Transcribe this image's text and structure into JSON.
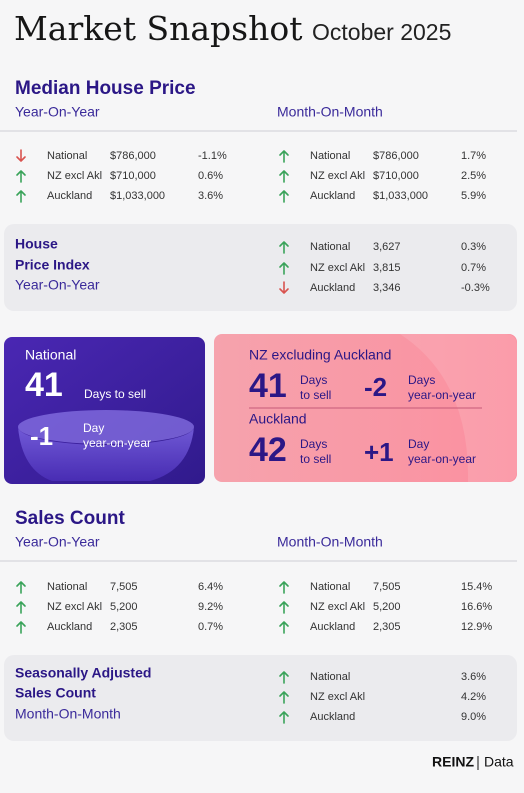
{
  "header": {
    "title": "Market Snapshot",
    "subtitle": "October 2025"
  },
  "median_price": {
    "title": "Median House Price",
    "yoy_label": "Year-On-Year",
    "mom_label": "Month-On-Month",
    "yoy": [
      {
        "dir": "down",
        "region": "National",
        "value": "$786,000",
        "change": "-1.1%"
      },
      {
        "dir": "up",
        "region": "NZ excl Akl",
        "value": "$710,000",
        "change": "0.6%"
      },
      {
        "dir": "up",
        "region": "Auckland",
        "value": "$1,033,000",
        "change": "3.6%"
      }
    ],
    "mom": [
      {
        "dir": "up",
        "region": "National",
        "value": "$786,000",
        "change": "1.7%"
      },
      {
        "dir": "up",
        "region": "NZ excl Akl",
        "value": "$710,000",
        "change": "2.5%"
      },
      {
        "dir": "up",
        "region": "Auckland",
        "value": "$1,033,000",
        "change": "5.9%"
      }
    ]
  },
  "hpi": {
    "title_lines": [
      "House",
      "Price Index"
    ],
    "period": "Year-On-Year",
    "rows": [
      {
        "dir": "up",
        "region": "National",
        "value": "3,627",
        "change": "0.3%"
      },
      {
        "dir": "up",
        "region": "NZ excl Akl",
        "value": "3,815",
        "change": "0.7%"
      },
      {
        "dir": "down",
        "region": "Auckland",
        "value": "3,346",
        "change": "-0.3%"
      }
    ]
  },
  "days_to_sell": {
    "national": {
      "label": "National",
      "days": "41",
      "unit": "Days to sell",
      "change": "-1",
      "change_unit_lines": [
        "Day",
        "year-on-year"
      ]
    },
    "nz_excl_akl": {
      "label": "NZ excluding Auckland",
      "days": "41",
      "unit_lines": [
        "Days",
        "to sell"
      ],
      "change": "-2",
      "change_unit_lines": [
        "Days",
        "year-on-year"
      ]
    },
    "auckland": {
      "label": "Auckland",
      "days": "42",
      "unit_lines": [
        "Days",
        "to sell"
      ],
      "change": "+1",
      "change_unit_lines": [
        "Day",
        "year-on-year"
      ]
    }
  },
  "sales_count": {
    "title": "Sales Count",
    "yoy_label": "Year-On-Year",
    "mom_label": "Month-On-Month",
    "yoy": [
      {
        "dir": "up",
        "region": "National",
        "value": "7,505",
        "change": "6.4%"
      },
      {
        "dir": "up",
        "region": "NZ excl Akl",
        "value": "5,200",
        "change": "9.2%"
      },
      {
        "dir": "up",
        "region": "Auckland",
        "value": "2,305",
        "change": "0.7%"
      }
    ],
    "mom": [
      {
        "dir": "up",
        "region": "National",
        "value": "7,505",
        "change": "15.4%"
      },
      {
        "dir": "up",
        "region": "NZ excl Akl",
        "value": "5,200",
        "change": "16.6%"
      },
      {
        "dir": "up",
        "region": "Auckland",
        "value": "2,305",
        "change": "12.9%"
      }
    ]
  },
  "seasonal": {
    "title_lines": [
      "Seasonally Adjusted",
      "Sales Count"
    ],
    "period": "Month-On-Month",
    "rows": [
      {
        "dir": "up",
        "region": "National",
        "change": "3.6%"
      },
      {
        "dir": "up",
        "region": "NZ excl Akl",
        "change": "4.2%"
      },
      {
        "dir": "up",
        "region": "Auckland",
        "change": "9.0%"
      }
    ]
  },
  "footer": {
    "brand": "REINZ",
    "label": "Data"
  }
}
